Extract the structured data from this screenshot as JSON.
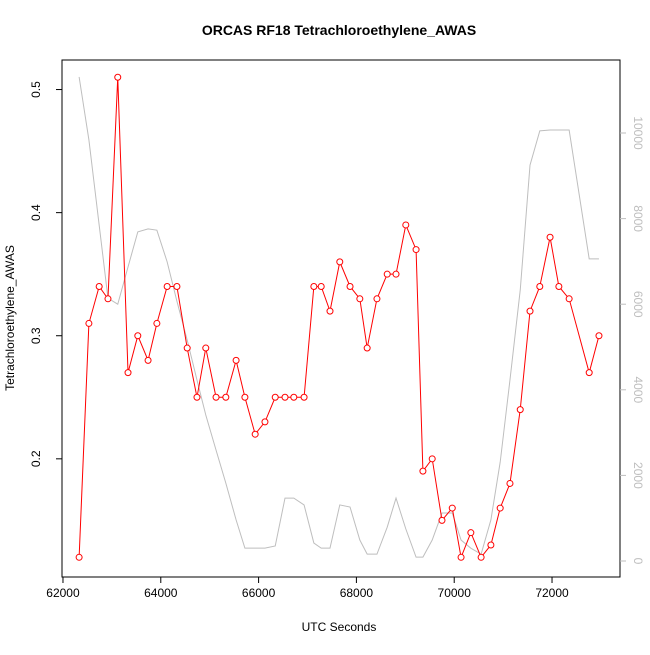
{
  "chart_data": {
    "type": "line",
    "title": "ORCAS RF18 Tetrachloroethylene_AWAS",
    "x_label": "UTC Seconds",
    "y_label": "Tetrachloroethylene_AWAS",
    "x": [
      62330,
      62530,
      62740,
      62920,
      63120,
      63330,
      63530,
      63740,
      63920,
      64130,
      64330,
      64540,
      64740,
      64920,
      65130,
      65330,
      65540,
      65720,
      65930,
      66130,
      66340,
      66540,
      66720,
      66930,
      67130,
      67280,
      67460,
      67660,
      67870,
      68070,
      68220,
      68420,
      68630,
      68810,
      69010,
      69220,
      69360,
      69550,
      69750,
      69960,
      70140,
      70340,
      70550,
      70750,
      70940,
      71140,
      71350,
      71550,
      71750,
      71960,
      72140,
      72350,
      72760,
      72960
    ],
    "series": [
      {
        "color": "#ff0000",
        "markers": true,
        "values": [
          0.12,
          0.31,
          0.34,
          0.33,
          0.51,
          0.27,
          0.3,
          0.28,
          0.31,
          0.34,
          0.34,
          0.29,
          0.25,
          0.29,
          0.25,
          0.25,
          0.28,
          0.25,
          0.22,
          0.23,
          0.25,
          0.25,
          0.25,
          0.25,
          0.34,
          0.34,
          0.32,
          0.36,
          0.34,
          0.33,
          0.29,
          0.33,
          0.35,
          0.35,
          0.39,
          0.37,
          0.19,
          0.2,
          0.15,
          0.16,
          0.12,
          0.14,
          0.12,
          0.13,
          0.16,
          0.18,
          0.24,
          0.32,
          0.34,
          0.38,
          0.34,
          0.33,
          0.27,
          0.3
        ]
      },
      {
        "color": "#bebebe",
        "axis": "y2",
        "markers": false,
        "values": [
          11310,
          9840,
          7850,
          6140,
          6000,
          6870,
          7690,
          7760,
          7730,
          6990,
          6070,
          5160,
          4230,
          3410,
          2590,
          1820,
          960,
          300,
          300,
          300,
          350,
          1470,
          1470,
          1310,
          420,
          300,
          300,
          1310,
          1260,
          490,
          160,
          160,
          790,
          1470,
          750,
          90,
          90,
          490,
          1120,
          1120,
          490,
          300,
          160,
          960,
          2310,
          4230,
          6330,
          9250,
          10050,
          10070,
          10070,
          10070,
          7060,
          7060
        ]
      }
    ],
    "xlim": [
      61980,
      73390
    ],
    "xticks": [
      62000,
      64000,
      66000,
      68000,
      70000,
      72000
    ],
    "ylim": [
      0.104,
      0.524
    ],
    "yticks": [
      0.2,
      0.3,
      0.4,
      0.5
    ],
    "y2lim": [
      -374,
      11706
    ],
    "y2ticks": [
      0,
      2000,
      4000,
      6000,
      8000,
      10000
    ],
    "y2_color": "#bebebe"
  }
}
